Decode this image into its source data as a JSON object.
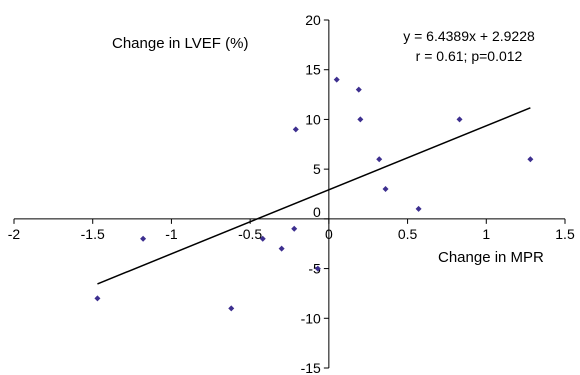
{
  "chart_data": {
    "type": "scatter",
    "xlabel": "Change in MPR",
    "ylabel": "Change in LVEF (%)",
    "xlim": [
      -2,
      1.5
    ],
    "ylim": [
      -15,
      20
    ],
    "x_ticks": [
      "-2",
      "-1.5",
      "-1",
      "-0.5",
      "0",
      "0.5",
      "1",
      "1.5"
    ],
    "y_ticks": [
      "-15",
      "-10",
      "-5",
      "0",
      "5",
      "10",
      "15",
      "20"
    ],
    "grid": false,
    "series": [
      {
        "points": [
          {
            "x": -1.47,
            "y": -8
          },
          {
            "x": -1.18,
            "y": -2
          },
          {
            "x": -0.62,
            "y": -9
          },
          {
            "x": -0.42,
            "y": -2
          },
          {
            "x": -0.3,
            "y": -3
          },
          {
            "x": -0.22,
            "y": -1
          },
          {
            "x": -0.21,
            "y": 9
          },
          {
            "x": -0.07,
            "y": -5
          },
          {
            "x": 0.05,
            "y": 14
          },
          {
            "x": 0.19,
            "y": 13
          },
          {
            "x": 0.2,
            "y": 10
          },
          {
            "x": 0.32,
            "y": 6
          },
          {
            "x": 0.36,
            "y": 3
          },
          {
            "x": 0.57,
            "y": 1
          },
          {
            "x": 0.83,
            "y": 10
          },
          {
            "x": 1.28,
            "y": 6
          }
        ],
        "color": "#3d2f8f"
      }
    ],
    "trendline": {
      "slope": 6.4389,
      "intercept": 2.9228,
      "x_range": [
        -1.47,
        1.28
      ],
      "color": "#000000"
    },
    "annotations": [
      "y = 6.4389x + 2.9228",
      "r = 0.61; p=0.012"
    ]
  }
}
